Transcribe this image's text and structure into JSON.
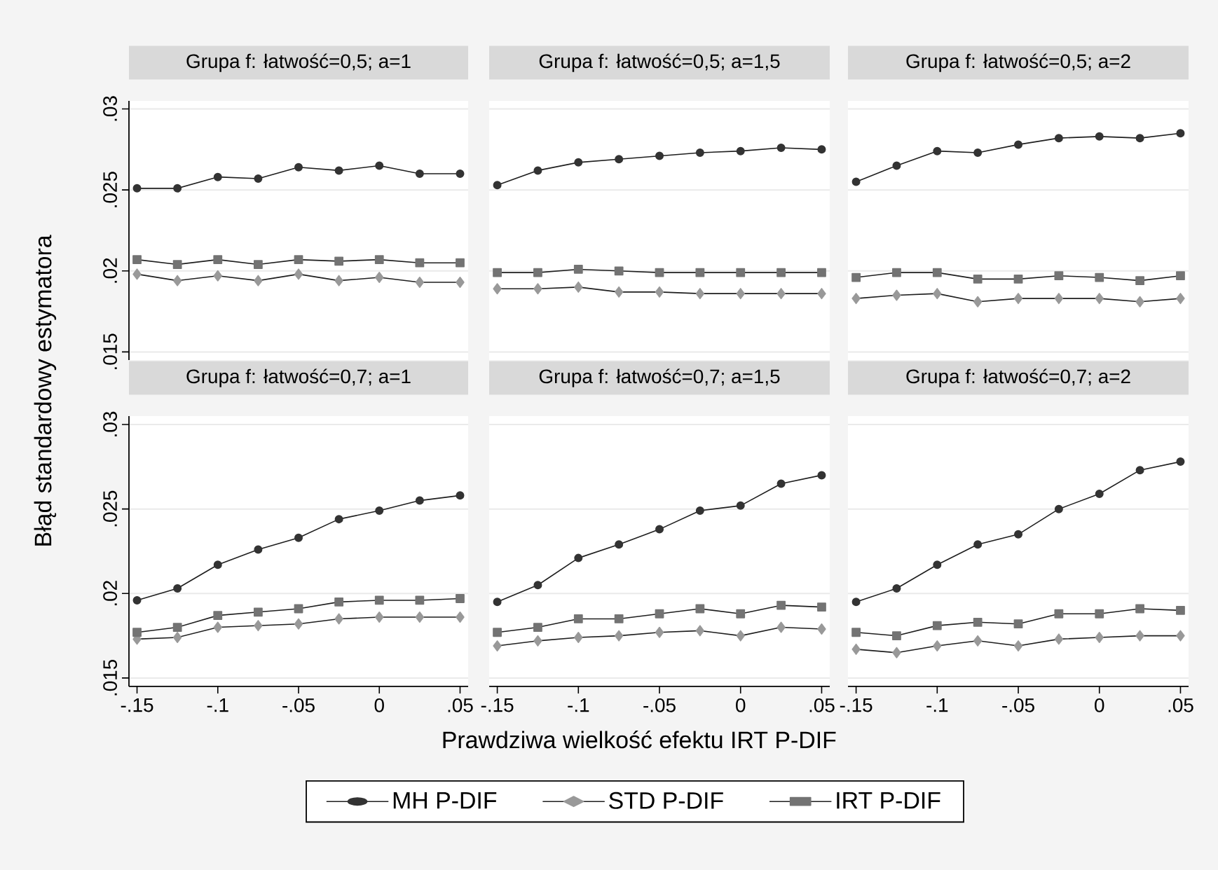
{
  "chart_data": [
    {
      "type": "line",
      "title": "Grupa f: łatwość=0,5; a=1",
      "ylabel": "Błąd standardowy estymatora",
      "x": [
        -0.15,
        -0.125,
        -0.1,
        -0.075,
        -0.05,
        -0.025,
        0,
        0.025,
        0.05
      ],
      "xlim": [
        -0.155,
        0.055
      ],
      "ylim": [
        0.0145,
        0.0305
      ],
      "xticks": [
        {
          "value": -0.15,
          "label": null
        },
        {
          "value": -0.1,
          "label": null
        },
        {
          "value": -0.05,
          "label": null
        },
        {
          "value": 0,
          "label": null
        },
        {
          "value": 0.05,
          "label": null
        }
      ],
      "yticks": [
        {
          "value": 0.015,
          "label": ".015"
        },
        {
          "value": 0.02,
          "label": ".02"
        },
        {
          "value": 0.025,
          "label": ".025"
        },
        {
          "value": 0.03,
          "label": ".03"
        }
      ],
      "grid": "y",
      "tick_labels": "y",
      "line_style": "solid",
      "series": [
        {
          "color": "#333333",
          "marker": "circle",
          "values": [
            0.0251,
            0.0251,
            0.0258,
            0.0257,
            0.0264,
            0.0262,
            0.0265,
            0.026,
            0.026
          ]
        },
        {
          "color": "#999999",
          "marker": "diamond",
          "values": [
            0.0198,
            0.0194,
            0.0197,
            0.0194,
            0.0198,
            0.0194,
            0.0196,
            0.0193,
            0.0193
          ]
        },
        {
          "color": "#737373",
          "marker": "square",
          "values": [
            0.0207,
            0.0204,
            0.0207,
            0.0204,
            0.0207,
            0.0206,
            0.0207,
            0.0205,
            0.0205
          ]
        }
      ]
    },
    {
      "type": "line",
      "title": "Grupa f: łatwość=0,5; a=1,5",
      "x": [
        -0.15,
        -0.125,
        -0.1,
        -0.075,
        -0.05,
        -0.025,
        0,
        0.025,
        0.05
      ],
      "xlim": [
        -0.155,
        0.055
      ],
      "ylim": [
        0.0145,
        0.0305
      ],
      "xticks": [
        {
          "value": -0.15,
          "label": null
        },
        {
          "value": -0.1,
          "label": null
        },
        {
          "value": -0.05,
          "label": null
        },
        {
          "value": 0,
          "label": null
        },
        {
          "value": 0.05,
          "label": null
        }
      ],
      "yticks": [
        {
          "value": 0.015,
          "label": null
        },
        {
          "value": 0.02,
          "label": null
        },
        {
          "value": 0.025,
          "label": null
        },
        {
          "value": 0.03,
          "label": null
        }
      ],
      "grid": "y",
      "tick_labels": false,
      "line_style": "solid",
      "series": [
        {
          "color": "#333333",
          "marker": "circle",
          "values": [
            0.0253,
            0.0262,
            0.0267,
            0.0269,
            0.0271,
            0.0273,
            0.0274,
            0.0276,
            0.0275
          ]
        },
        {
          "color": "#999999",
          "marker": "diamond",
          "values": [
            0.0189,
            0.0189,
            0.019,
            0.0187,
            0.0187,
            0.0186,
            0.0186,
            0.0186,
            0.0186
          ]
        },
        {
          "color": "#737373",
          "marker": "square",
          "values": [
            0.0199,
            0.0199,
            0.0201,
            0.02,
            0.0199,
            0.0199,
            0.0199,
            0.0199,
            0.0199
          ]
        }
      ]
    },
    {
      "type": "line",
      "title": "Grupa f: łatwość=0,5; a=2",
      "x": [
        -0.15,
        -0.125,
        -0.1,
        -0.075,
        -0.05,
        -0.025,
        0,
        0.025,
        0.05
      ],
      "xlim": [
        -0.155,
        0.055
      ],
      "ylim": [
        0.0145,
        0.0305
      ],
      "xticks": [
        {
          "value": -0.15,
          "label": null
        },
        {
          "value": -0.1,
          "label": null
        },
        {
          "value": -0.05,
          "label": null
        },
        {
          "value": 0,
          "label": null
        },
        {
          "value": 0.05,
          "label": null
        }
      ],
      "yticks": [
        {
          "value": 0.015,
          "label": null
        },
        {
          "value": 0.02,
          "label": null
        },
        {
          "value": 0.025,
          "label": null
        },
        {
          "value": 0.03,
          "label": null
        }
      ],
      "grid": "y",
      "tick_labels": false,
      "line_style": "solid",
      "series": [
        {
          "color": "#333333",
          "marker": "circle",
          "values": [
            0.0255,
            0.0265,
            0.0274,
            0.0273,
            0.0278,
            0.0282,
            0.0283,
            0.0282,
            0.0285
          ]
        },
        {
          "color": "#999999",
          "marker": "diamond",
          "values": [
            0.0183,
            0.0185,
            0.0186,
            0.0181,
            0.0183,
            0.0183,
            0.0183,
            0.0181,
            0.0183
          ]
        },
        {
          "color": "#737373",
          "marker": "square",
          "values": [
            0.0196,
            0.0199,
            0.0199,
            0.0195,
            0.0195,
            0.0197,
            0.0196,
            0.0194,
            0.0197
          ]
        }
      ]
    },
    {
      "type": "line",
      "title": "Grupa f: łatwość=0,7; a=1",
      "x": [
        -0.15,
        -0.125,
        -0.1,
        -0.075,
        -0.05,
        -0.025,
        0,
        0.025,
        0.05
      ],
      "xlim": [
        -0.155,
        0.055
      ],
      "ylim": [
        0.0145,
        0.0305
      ],
      "xticks": [
        {
          "value": -0.15,
          "label": "-.15"
        },
        {
          "value": -0.1,
          "label": "-.1"
        },
        {
          "value": -0.05,
          "label": "-.05"
        },
        0,
        {
          "value": 0.05,
          "label": ".05"
        }
      ],
      "yticks": [
        {
          "value": 0.015,
          "label": ".015"
        },
        {
          "value": 0.02,
          "label": ".02"
        },
        {
          "value": 0.025,
          "label": ".025"
        },
        {
          "value": 0.03,
          "label": ".03"
        }
      ],
      "grid": "y",
      "line_style": "solid",
      "series": [
        {
          "color": "#333333",
          "marker": "circle",
          "values": [
            0.0196,
            0.0203,
            0.0217,
            0.0226,
            0.0233,
            0.0244,
            0.0249,
            0.0255,
            0.0258
          ]
        },
        {
          "color": "#999999",
          "marker": "diamond",
          "values": [
            0.0173,
            0.0174,
            0.018,
            0.0181,
            0.0182,
            0.0185,
            0.0186,
            0.0186,
            0.0186
          ]
        },
        {
          "color": "#737373",
          "marker": "square",
          "values": [
            0.0177,
            0.018,
            0.0187,
            0.0189,
            0.0191,
            0.0195,
            0.0196,
            0.0196,
            0.0197
          ]
        }
      ]
    },
    {
      "type": "line",
      "title": "Grupa f: łatwość=0,7; a=1,5",
      "xlabel": "Prawdziwa wielkość efektu IRT P-DIF",
      "x": [
        -0.15,
        -0.125,
        -0.1,
        -0.075,
        -0.05,
        -0.025,
        0,
        0.025,
        0.05
      ],
      "xlim": [
        -0.155,
        0.055
      ],
      "ylim": [
        0.0145,
        0.0305
      ],
      "xticks": [
        {
          "value": -0.15,
          "label": "-.15"
        },
        {
          "value": -0.1,
          "label": "-.1"
        },
        {
          "value": -0.05,
          "label": "-.05"
        },
        0,
        {
          "value": 0.05,
          "label": ".05"
        }
      ],
      "yticks": [
        {
          "value": 0.015,
          "label": null
        },
        {
          "value": 0.02,
          "label": null
        },
        {
          "value": 0.025,
          "label": null
        },
        {
          "value": 0.03,
          "label": null
        }
      ],
      "grid": "y",
      "tick_labels": "x",
      "legend": "bottom",
      "line_style": "solid",
      "series": [
        {
          "name": "MH P-DIF",
          "color": "#333333",
          "marker": "circle",
          "values": [
            0.0195,
            0.0205,
            0.0221,
            0.0229,
            0.0238,
            0.0249,
            0.0252,
            0.0265,
            0.027
          ]
        },
        {
          "name": "STD P-DIF",
          "color": "#999999",
          "marker": "diamond",
          "values": [
            0.0169,
            0.0172,
            0.0174,
            0.0175,
            0.0177,
            0.0178,
            0.0175,
            0.018,
            0.0179
          ]
        },
        {
          "name": "IRT P-DIF",
          "color": "#737373",
          "marker": "square",
          "values": [
            0.0177,
            0.018,
            0.0185,
            0.0185,
            0.0188,
            0.0191,
            0.0188,
            0.0193,
            0.0192
          ]
        }
      ]
    },
    {
      "type": "line",
      "title": "Grupa f: łatwość=0,7; a=2",
      "x": [
        -0.15,
        -0.125,
        -0.1,
        -0.075,
        -0.05,
        -0.025,
        0,
        0.025,
        0.05
      ],
      "xlim": [
        -0.155,
        0.055
      ],
      "ylim": [
        0.0145,
        0.0305
      ],
      "xticks": [
        {
          "value": -0.15,
          "label": "-.15"
        },
        {
          "value": -0.1,
          "label": "-.1"
        },
        {
          "value": -0.05,
          "label": "-.05"
        },
        0,
        {
          "value": 0.05,
          "label": ".05"
        }
      ],
      "yticks": [
        {
          "value": 0.015,
          "label": null
        },
        {
          "value": 0.02,
          "label": null
        },
        {
          "value": 0.025,
          "label": null
        },
        {
          "value": 0.03,
          "label": null
        }
      ],
      "grid": "y",
      "tick_labels": "x",
      "line_style": "solid",
      "series": [
        {
          "color": "#333333",
          "marker": "circle",
          "values": [
            0.0195,
            0.0203,
            0.0217,
            0.0229,
            0.0235,
            0.025,
            0.0259,
            0.0273,
            0.0278
          ]
        },
        {
          "color": "#999999",
          "marker": "diamond",
          "values": [
            0.0167,
            0.0165,
            0.0169,
            0.0172,
            0.0169,
            0.0173,
            0.0174,
            0.0175,
            0.0175
          ]
        },
        {
          "color": "#737373",
          "marker": "square",
          "values": [
            0.0177,
            0.0175,
            0.0181,
            0.0183,
            0.0182,
            0.0188,
            0.0188,
            0.0191,
            0.019
          ]
        }
      ]
    }
  ]
}
